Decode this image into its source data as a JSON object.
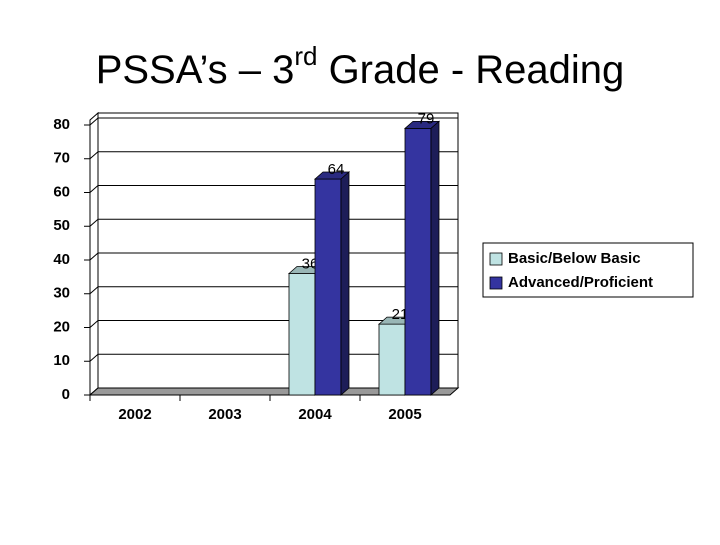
{
  "chart_data": {
    "type": "bar3d",
    "title": [
      "PSSA’s – 3",
      "rd",
      " Grade - Reading"
    ],
    "categories": [
      "2002",
      "2003",
      "2004",
      "2005"
    ],
    "series": [
      {
        "name": "Basic/Below Basic",
        "color": "#bfe3e3",
        "values": [
          null,
          null,
          36,
          21
        ]
      },
      {
        "name": "Advanced/Proficient",
        "color": "#3434a0",
        "values": [
          null,
          null,
          64,
          79
        ]
      }
    ],
    "ylim": [
      0,
      80
    ],
    "yticks": [
      0,
      10,
      20,
      30,
      40,
      50,
      60,
      70,
      80
    ],
    "grid": true,
    "legend": "right"
  }
}
